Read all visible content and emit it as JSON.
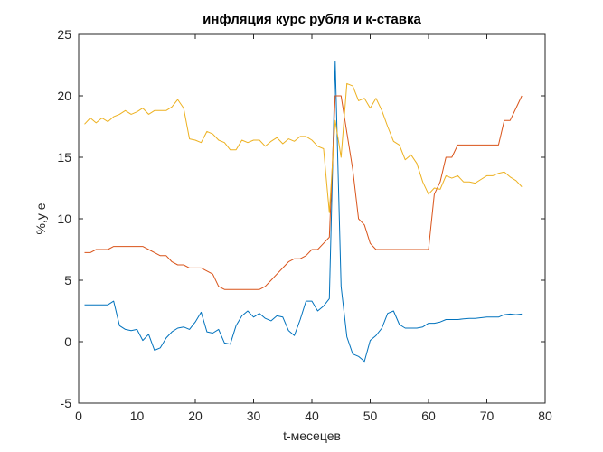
{
  "chart_data": {
    "type": "line",
    "title": "инфляция курс рубля и к-ставка",
    "xlabel": "t-месецев",
    "ylabel": "%,у е",
    "xlim": [
      0,
      80
    ],
    "ylim": [
      -5,
      25
    ],
    "xticks": [
      "0",
      "10",
      "20",
      "30",
      "40",
      "50",
      "60",
      "70",
      "80"
    ],
    "yticks": [
      "-5",
      "0",
      "5",
      "10",
      "15",
      "20",
      "25"
    ],
    "grid": false,
    "legend": "none",
    "series": [
      {
        "color": "#0072BD",
        "x": [
          1,
          2,
          3,
          4,
          5,
          6,
          7,
          8,
          9,
          10,
          11,
          12,
          13,
          14,
          15,
          16,
          17,
          18,
          19,
          20,
          21,
          22,
          23,
          24,
          25,
          26,
          27,
          28,
          29,
          30,
          31,
          32,
          33,
          34,
          35,
          36,
          37,
          38,
          39,
          40,
          41,
          42,
          43,
          44,
          45,
          46,
          47,
          48,
          49,
          50,
          51,
          52,
          53,
          54,
          55,
          56,
          57,
          58,
          59,
          60,
          61,
          62,
          63,
          64,
          65,
          66,
          67,
          68,
          69,
          70,
          71,
          72,
          73,
          74,
          75,
          76
        ],
        "y": [
          3.0,
          3.0,
          3.0,
          3.0,
          3.0,
          3.3,
          1.3,
          1.0,
          0.9,
          1.0,
          0.1,
          0.6,
          -0.7,
          -0.5,
          0.3,
          0.8,
          1.1,
          1.2,
          1.0,
          1.6,
          2.4,
          0.8,
          0.7,
          1.0,
          -0.1,
          -0.2,
          1.3,
          2.1,
          2.5,
          2.0,
          2.3,
          1.9,
          1.7,
          2.1,
          2.0,
          0.9,
          0.5,
          1.8,
          3.3,
          3.3,
          2.5,
          2.9,
          3.5,
          22.8,
          4.5,
          0.4,
          -1.0,
          -1.2,
          -1.6,
          0.1,
          0.5,
          1.1,
          2.3,
          2.5,
          1.4,
          1.1,
          1.1,
          1.1,
          1.2,
          1.5,
          1.5,
          1.6,
          1.8,
          1.8,
          1.8,
          1.85,
          1.9,
          1.9,
          1.95,
          2.0,
          2.0,
          2.0,
          2.2,
          2.25,
          2.2,
          2.25
        ]
      },
      {
        "color": "#D95319",
        "x": [
          1,
          2,
          3,
          4,
          5,
          6,
          7,
          8,
          9,
          10,
          11,
          12,
          13,
          14,
          15,
          16,
          17,
          18,
          19,
          20,
          21,
          22,
          23,
          24,
          25,
          26,
          27,
          28,
          29,
          30,
          31,
          32,
          33,
          34,
          35,
          36,
          37,
          38,
          39,
          40,
          41,
          42,
          43,
          44,
          45,
          46,
          47,
          48,
          49,
          50,
          51,
          52,
          53,
          54,
          55,
          56,
          57,
          58,
          59,
          60,
          61,
          62,
          63,
          64,
          65,
          66,
          67,
          68,
          69,
          70,
          71,
          72,
          73,
          74,
          75,
          76
        ],
        "y": [
          7.25,
          7.25,
          7.5,
          7.5,
          7.5,
          7.75,
          7.75,
          7.75,
          7.75,
          7.75,
          7.75,
          7.5,
          7.25,
          7.0,
          7.0,
          6.5,
          6.25,
          6.25,
          6.0,
          6.0,
          6.0,
          5.75,
          5.5,
          4.5,
          4.25,
          4.25,
          4.25,
          4.25,
          4.25,
          4.25,
          4.25,
          4.5,
          5.0,
          5.5,
          6.0,
          6.5,
          6.75,
          6.75,
          7.0,
          7.5,
          7.5,
          8.0,
          8.5,
          20.0,
          20.0,
          17.0,
          14.0,
          10.0,
          9.5,
          8.0,
          7.5,
          7.5,
          7.5,
          7.5,
          7.5,
          7.5,
          7.5,
          7.5,
          7.5,
          7.5,
          12.0,
          13.0,
          15.0,
          15.0,
          16.0,
          16.0,
          16.0,
          16.0,
          16.0,
          16.0,
          16.0,
          16.0,
          18.0,
          18.0,
          19.0,
          20.0
        ]
      },
      {
        "color": "#EDB120",
        "x": [
          1,
          2,
          3,
          4,
          5,
          6,
          7,
          8,
          9,
          10,
          11,
          12,
          13,
          14,
          15,
          16,
          17,
          18,
          19,
          20,
          21,
          22,
          23,
          24,
          25,
          26,
          27,
          28,
          29,
          30,
          31,
          32,
          33,
          34,
          35,
          36,
          37,
          38,
          39,
          40,
          41,
          42,
          43,
          44,
          45,
          46,
          47,
          48,
          49,
          50,
          51,
          52,
          53,
          54,
          55,
          56,
          57,
          58,
          59,
          60,
          61,
          62,
          63,
          64,
          65,
          66,
          67,
          68,
          69,
          70,
          71,
          72,
          73,
          74,
          75,
          76
        ],
        "y": [
          17.7,
          18.2,
          17.8,
          18.2,
          17.9,
          18.3,
          18.5,
          18.8,
          18.5,
          18.7,
          19.0,
          18.5,
          18.8,
          18.8,
          18.8,
          19.1,
          19.7,
          19.0,
          16.5,
          16.4,
          16.2,
          17.1,
          16.9,
          16.4,
          16.2,
          15.6,
          15.6,
          16.4,
          16.2,
          16.4,
          16.4,
          15.9,
          16.3,
          16.6,
          16.1,
          16.5,
          16.3,
          16.7,
          16.7,
          16.4,
          15.9,
          15.7,
          10.5,
          18.0,
          15.0,
          21.0,
          20.8,
          19.6,
          19.8,
          19.0,
          19.8,
          18.8,
          17.5,
          16.3,
          16.0,
          14.8,
          15.2,
          14.5,
          13.0,
          12.0,
          12.5,
          12.4,
          13.5,
          13.3,
          13.5,
          13.0,
          13.0,
          12.9,
          13.2,
          13.5,
          13.5,
          13.7,
          13.8,
          13.4,
          13.1,
          12.6
        ]
      }
    ]
  }
}
